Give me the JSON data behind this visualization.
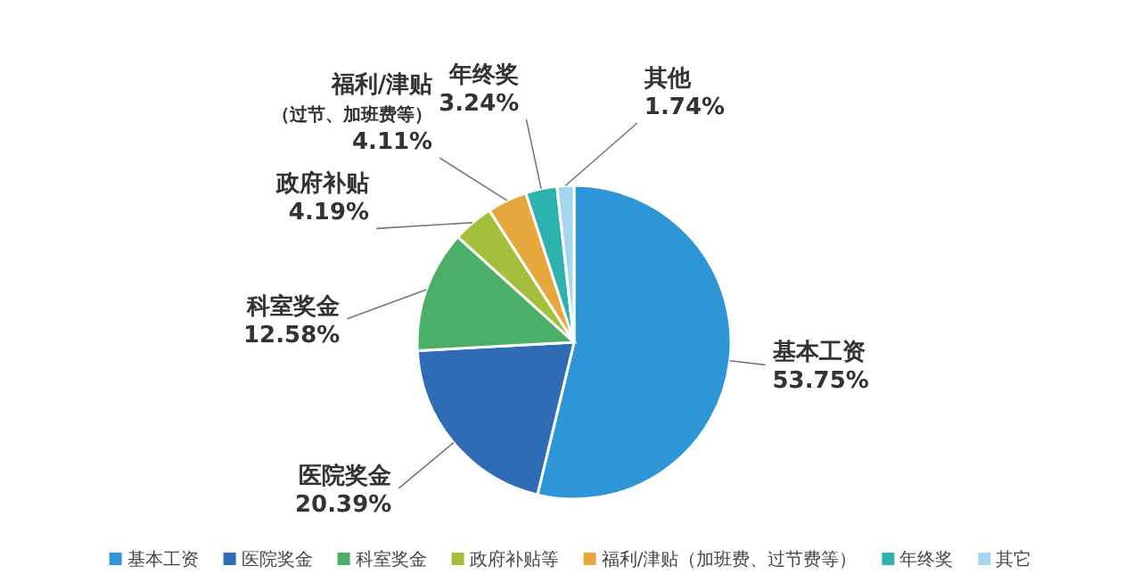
{
  "chart_data": {
    "type": "pie",
    "categories": [
      "基本工资",
      "医院奖金",
      "科室奖金",
      "政府补贴等",
      "福利/津贴（加班费、过节费等）",
      "年终奖",
      "其它"
    ],
    "values": [
      53.75,
      20.39,
      12.58,
      4.19,
      4.11,
      3.24,
      1.74
    ],
    "colors": [
      "#2e96d6",
      "#2f6cb5",
      "#4caf68",
      "#a4bf3c",
      "#e6a83c",
      "#2db3ad",
      "#a6d6ef"
    ],
    "value_labels": [
      "53.75%",
      "20.39%",
      "12.58%",
      "4.19%",
      "4.11%",
      "3.24%",
      "1.74%"
    ],
    "annotations": [
      {
        "text": "基本工资",
        "x": "基本工资"
      },
      {
        "text": "医院奖金",
        "x": "医院奖金"
      },
      {
        "text": "科室奖金",
        "x": "科室奖金"
      },
      {
        "text": "政府补贴",
        "x": "政府补贴等"
      },
      {
        "text": "福利/津贴",
        "x": "福利/津贴（加班费、过节费等）"
      },
      {
        "text": "（过节、加班费等）",
        "x": "福利/津贴（加班费、过节费等）"
      },
      {
        "text": "年终奖",
        "x": "年终奖"
      },
      {
        "text": "其他",
        "x": "其它"
      }
    ],
    "legend": "bottom"
  }
}
